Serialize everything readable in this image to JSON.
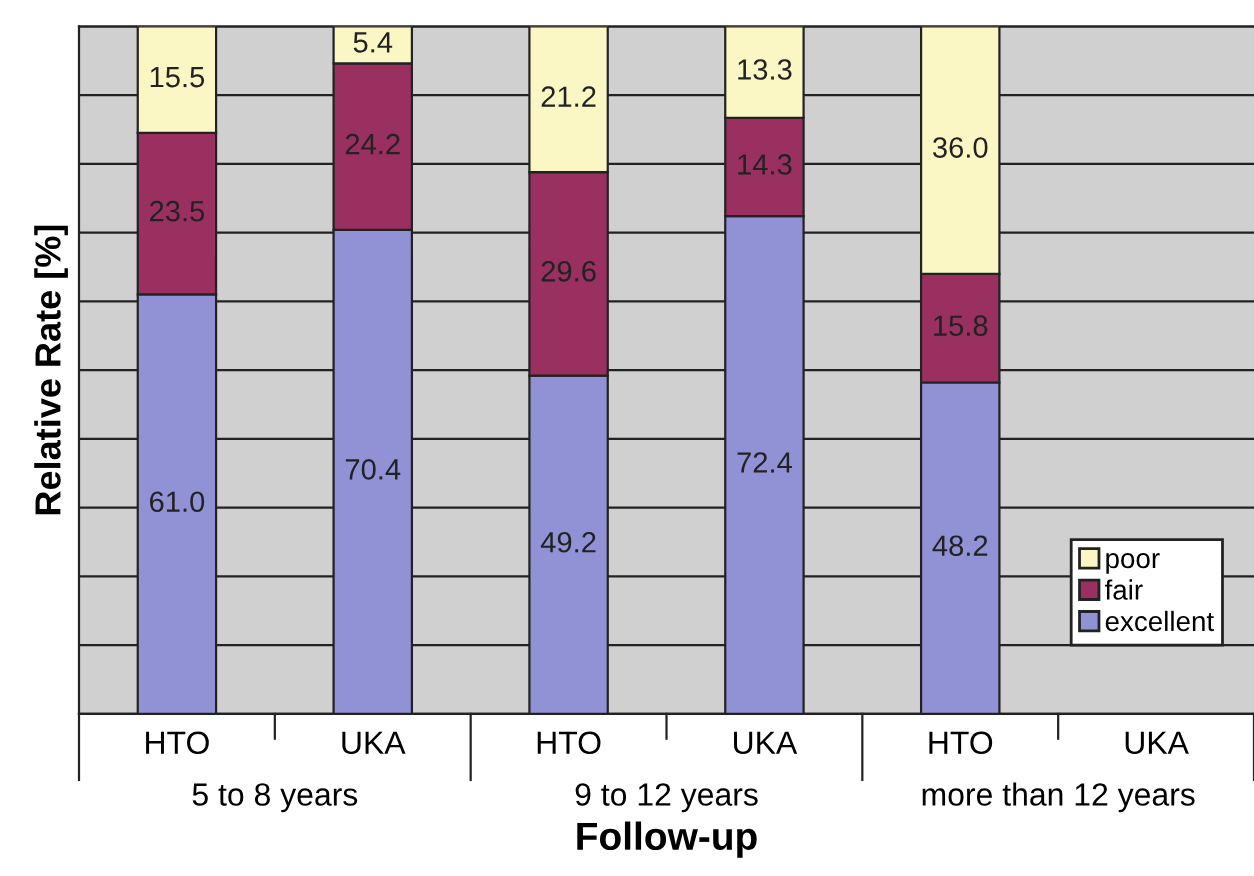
{
  "chart_data": {
    "type": "bar",
    "stacked": true,
    "xlabel": "Follow-up",
    "ylabel": "Relative Rate [%]",
    "categories": [
      "HTO",
      "UKA",
      "HTO",
      "UKA",
      "HTO",
      "UKA"
    ],
    "series": [
      {
        "name": "excellent",
        "color": "#9191d6",
        "values": [
          61.0,
          70.4,
          49.2,
          72.4,
          48.2,
          null
        ],
        "value_labels": [
          "61.0",
          "70.4",
          "49.2",
          "72.4",
          "48.2",
          null
        ]
      },
      {
        "name": "fair",
        "color": "#993060",
        "values": [
          23.5,
          24.2,
          29.6,
          14.3,
          15.8,
          null
        ],
        "value_labels": [
          "23.5",
          "24.2",
          "29.6",
          "14.3",
          "15.8",
          null
        ]
      },
      {
        "name": "poor",
        "color": "#fbf7c4",
        "values": [
          15.5,
          5.4,
          21.2,
          13.3,
          36.0,
          null
        ],
        "value_labels": [
          "15.5",
          "5.4",
          "21.2",
          "13.3",
          "36.0",
          null
        ]
      }
    ],
    "annotations": [
      "5 to 8 years",
      "9 to 12 years",
      "more than 12 years"
    ],
    "ylim": [
      0,
      100
    ],
    "yticks": [
      {
        "value": 0,
        "label": null
      },
      {
        "value": 10,
        "label": null
      },
      {
        "value": 20,
        "label": null
      },
      {
        "value": 30,
        "label": null
      },
      {
        "value": 40,
        "label": null
      },
      {
        "value": 50,
        "label": null
      },
      {
        "value": 60,
        "label": null
      },
      {
        "value": 70,
        "label": null
      },
      {
        "value": 80,
        "label": null
      },
      {
        "value": 90,
        "label": null
      },
      {
        "value": 100,
        "label": null
      }
    ],
    "tick_labels": "x",
    "grid": "y",
    "legend": "bottom right"
  }
}
